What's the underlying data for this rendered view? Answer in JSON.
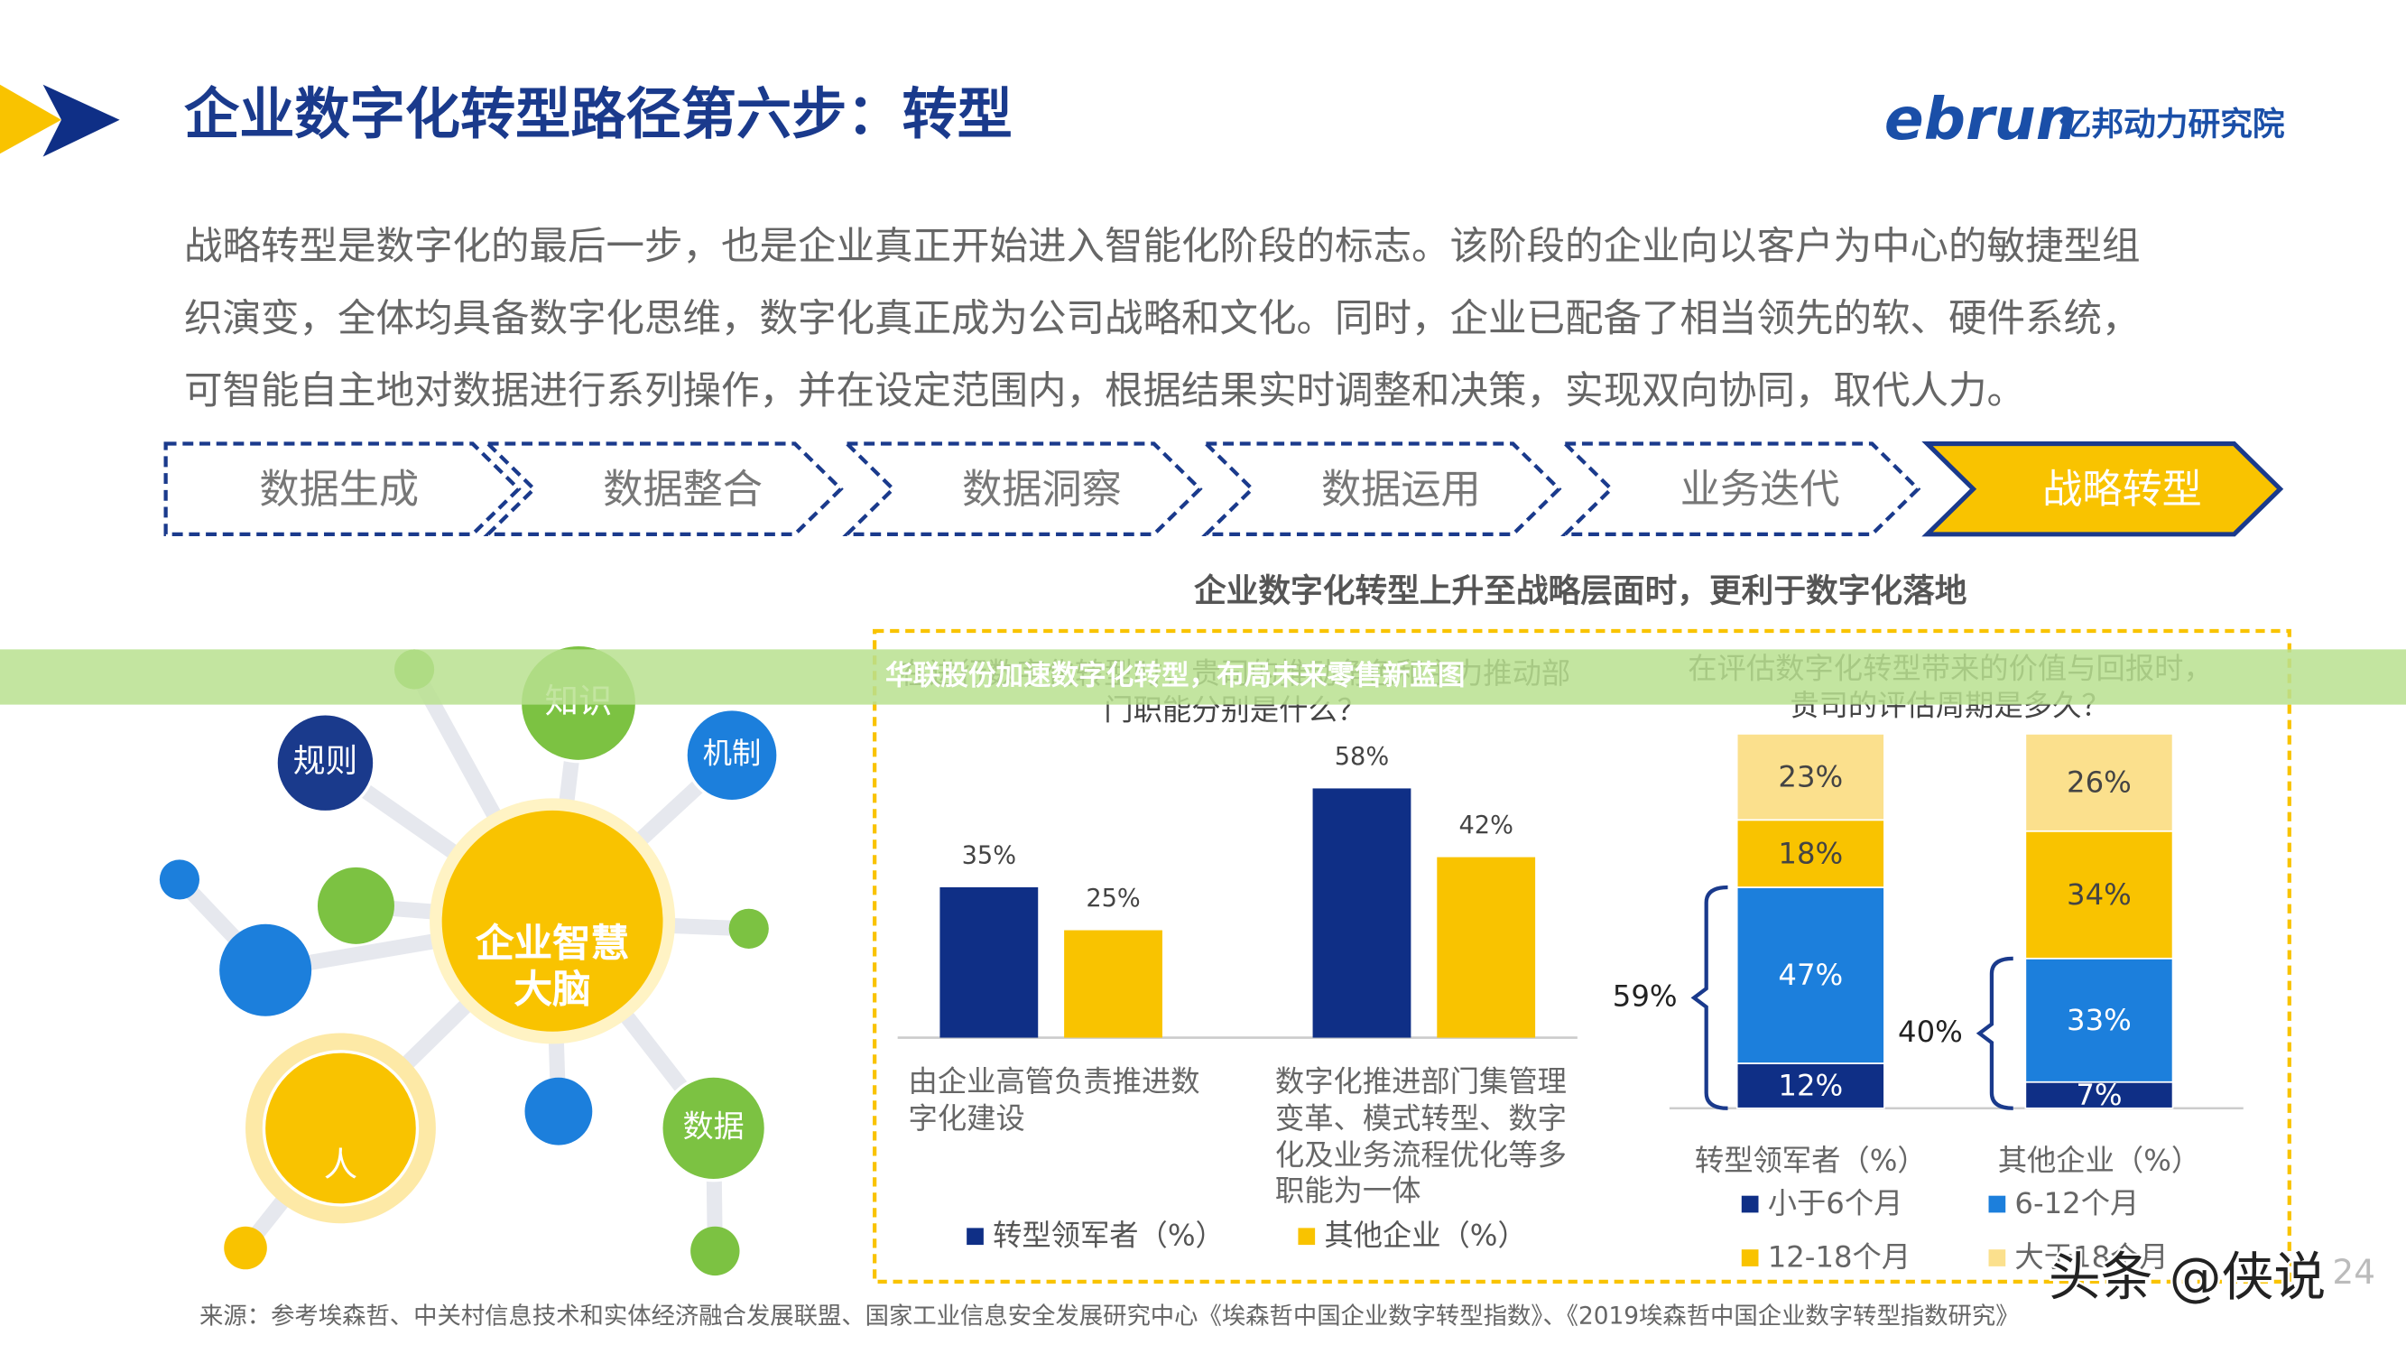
{
  "header": {
    "title": "企业数字化转型路径第六步：转型",
    "logo": "ebrun",
    "logo_sub": "亿邦动力研究院"
  },
  "intro": [
    "战略转型是数字化的最后一步，也是企业真正开始进入智能化阶段的标志。该阶段的企业向以客户为中心的敏捷型组",
    "织演变，全体均具备数字化思维，数字化真正成为公司战略和文化。同时，企业已配备了相当领先的软、硬件系统，",
    "可智能自主地对数据进行系列操作，并在设定范围内，根据结果实时调整和决策，实现双向协同，取代人力。"
  ],
  "steps": [
    "数据生成",
    "数据整合",
    "数据洞察",
    "数据运用",
    "业务迭代",
    "战略转型"
  ],
  "diagram": {
    "center": "企业智慧大脑",
    "nodes": [
      "知识",
      "规则",
      "机制",
      "人",
      "数据"
    ]
  },
  "charts_heading": "企业数字化转型上升至战略层面时，更利于数字化落地",
  "chart_data": [
    {
      "type": "bar",
      "title": "在进行数字化转型时，贵司的推动角色和主力推动部门职能分别是什么？",
      "categories": [
        "由企业高管负责推进数字化建设",
        "数字化推进部门集管理变革、模式转型、数字化及业务流程优化等多职能为一体"
      ],
      "series": [
        {
          "name": "转型领军者（%）",
          "color": "#0f2f86",
          "values": [
            35,
            58
          ],
          "value_labels": [
            "35%",
            "58%"
          ]
        },
        {
          "name": "其他企业（%）",
          "color": "#f9c300",
          "values": [
            25,
            42
          ],
          "value_labels": [
            "25%",
            "42%"
          ]
        }
      ]
    },
    {
      "type": "stacked_bar",
      "title": "在评估数字化转型带来的价值与回报时，贵司的评估周期是多久？",
      "categories": [
        "转型领军者（%）",
        "其他企业（%）"
      ],
      "series": [
        {
          "name": "小于6个月",
          "color": "#0f2f86",
          "values": [
            12,
            7
          ],
          "value_labels": [
            "12%",
            "7%"
          ]
        },
        {
          "name": "6-12个月",
          "color": "#1c7fdc",
          "values": [
            47,
            33
          ],
          "value_labels": [
            "47%",
            "33%"
          ]
        },
        {
          "name": "12-18个月",
          "color": "#f9c300",
          "values": [
            18,
            34
          ],
          "value_labels": [
            "18%",
            "34%"
          ]
        },
        {
          "name": "大于18个月",
          "color": "#fbe08d",
          "values": [
            23,
            26
          ],
          "value_labels": [
            "23%",
            "26%"
          ]
        }
      ],
      "annotations": [
        "59%",
        "40%"
      ]
    }
  ],
  "banner": "华联股份加速数字化转型，布局未来零售新蓝图",
  "source": "来源：参考埃森哲、中关村信息技术和实体经济融合发展联盟、国家工业信息安全发展研究中心《埃森哲中国企业数字转型指数》、《2019埃森哲中国企业数字转型指数研究》",
  "page_number": "24",
  "watermark": "头条 @侠说"
}
